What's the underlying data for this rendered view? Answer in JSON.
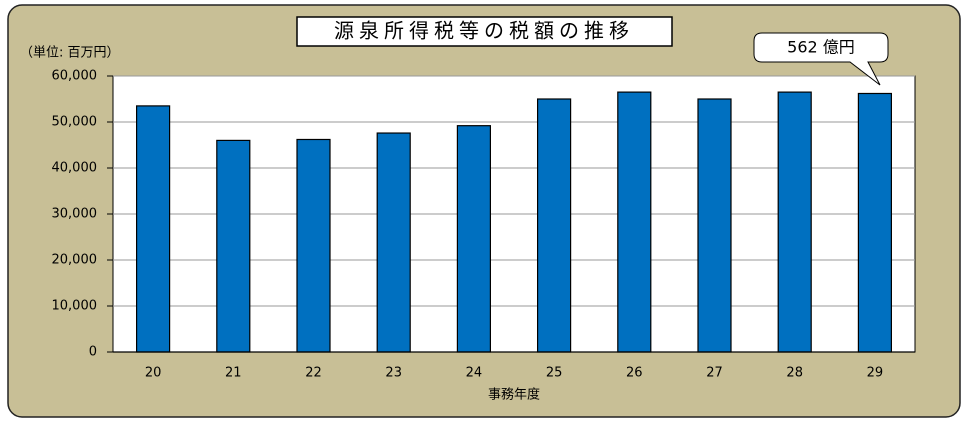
{
  "chart_data": {
    "type": "bar",
    "title": "源泉所得税等の税額の推移",
    "unit_label": "（単位: 百万円）",
    "x_label": "事務年度",
    "annotation": "562 億円",
    "categories": [
      "20",
      "21",
      "22",
      "23",
      "24",
      "25",
      "26",
      "27",
      "28",
      "29"
    ],
    "values": [
      53500,
      46000,
      46200,
      47600,
      49200,
      55000,
      56500,
      55000,
      56500,
      56200
    ],
    "color": "#0070c0",
    "ylim": [
      0,
      60000
    ],
    "yticks": [
      0,
      {
        "value": 10000,
        "label": "10,000"
      },
      {
        "value": 20000,
        "label": "20,000"
      },
      {
        "value": 30000,
        "label": "30,000"
      },
      {
        "value": 40000,
        "label": "40,000"
      },
      {
        "value": 50000,
        "label": "50,000"
      },
      {
        "value": 60000,
        "label": "60,000"
      }
    ],
    "grid": true
  }
}
